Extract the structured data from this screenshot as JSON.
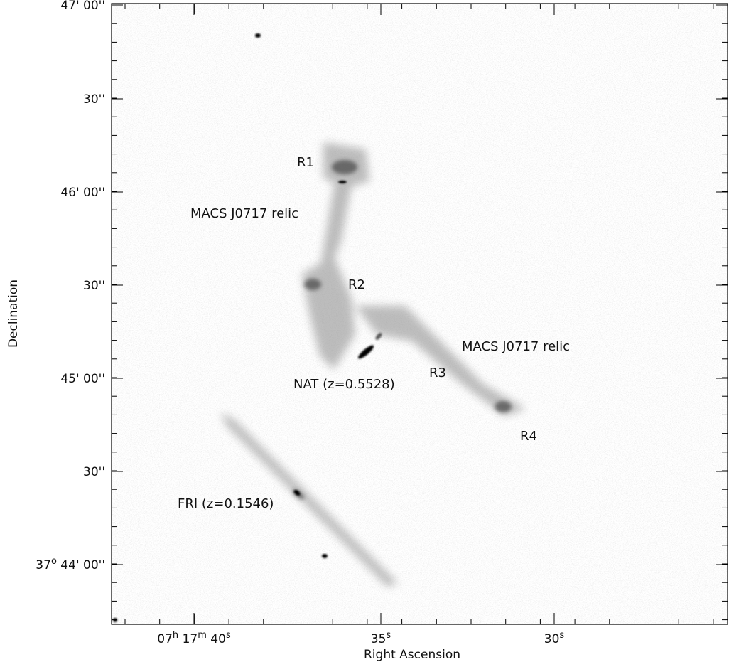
{
  "figure": {
    "x_label": "Right Ascension",
    "y_label": "Declination",
    "x_ticks": [
      [
        "07",
        "h",
        " 17",
        "m",
        " 40",
        "s"
      ],
      [
        "35",
        "s"
      ],
      [
        "30",
        "s"
      ]
    ],
    "y_ticks": [
      [
        "47' 00''"
      ],
      [
        "30''"
      ],
      [
        "46' 00''"
      ],
      [
        "30''"
      ],
      [
        "45' 00''"
      ],
      [
        "30''"
      ],
      [
        "37",
        "o",
        " 44' 00''"
      ]
    ],
    "annotations": [
      "R1",
      "MACS J0717 relic",
      "R2",
      "MACS J0717 relic",
      "R3",
      "NAT (z=0.5528)",
      "R4",
      "FRI (z=0.1546)"
    ]
  }
}
